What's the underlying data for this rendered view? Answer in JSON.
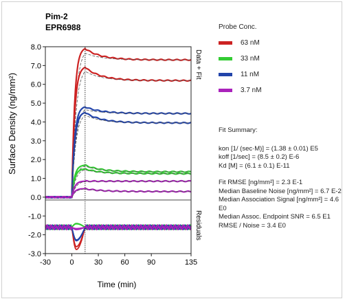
{
  "chart_data": {
    "type": "line",
    "title": "Pim-2",
    "subtitle": "EPR6988",
    "xlabel": "Time (min)",
    "ylabel": "Surface Density (ng/mm²)",
    "xlim": [
      -30,
      135
    ],
    "ylim": [
      -3.0,
      8.0
    ],
    "x_ticks": [
      -30,
      0,
      30,
      60,
      90,
      135
    ],
    "y_ticks": [
      "8.0",
      "7.0",
      "6.0",
      "5.0",
      "4.0",
      "3.0",
      "2.0",
      "1.0",
      "0.0",
      "-1.0",
      "-2.0",
      "-3.0"
    ],
    "section_labels": {
      "top": "Data + Fit",
      "bottom": "Residuals"
    },
    "injection_end_min": 15,
    "legend_title": "Probe Conc.",
    "series": [
      {
        "name": "63 nM",
        "color": "#cc2222",
        "curves": [
          {
            "kind": "data",
            "plateau": 7.9,
            "end": 7.3
          },
          {
            "kind": "data",
            "plateau": 6.9,
            "end": 6.2
          }
        ]
      },
      {
        "name": "33 nM",
        "color": "#33cc33",
        "curves": [
          {
            "kind": "data",
            "plateau": 1.7,
            "end": 1.35
          },
          {
            "kind": "data",
            "plateau": 1.5,
            "end": 1.25
          }
        ]
      },
      {
        "name": "11 nM",
        "color": "#2244aa",
        "curves": [
          {
            "kind": "data",
            "plateau": 4.8,
            "end": 4.45
          },
          {
            "kind": "data",
            "plateau": 4.5,
            "end": 3.95
          }
        ]
      },
      {
        "name": "3.7 nM",
        "color": "#aa22bb",
        "curves": [
          {
            "kind": "data",
            "plateau": 0.85,
            "end": 0.85
          },
          {
            "kind": "data",
            "plateau": 0.45,
            "end": 0.3
          }
        ]
      }
    ],
    "residuals_band": {
      "center": -1.6,
      "spread": 0.12
    }
  },
  "fit_summary": {
    "title": "Fit Summary:",
    "params": [
      "kon  [1/ (sec·M)]  =  (1.38 ± 0.01) E5",
      "koff  [1/sec]  =  (8.5 ± 0.2) E-6",
      "Kd  [M]  =  (6.1 ± 0.1) E-11"
    ],
    "stats": [
      "Fit RMSE [ng/mm²]  =  2.3 E-1",
      "Median Baseline Noise [ng/mm²]  =  6.7 E-2",
      "Median Association Signal [ng/mm²]  =  4.6 E0",
      "Median Assoc. Endpoint SNR  =  6.5 E1",
      "RMSE / Noise  =  3.4 E0"
    ]
  }
}
